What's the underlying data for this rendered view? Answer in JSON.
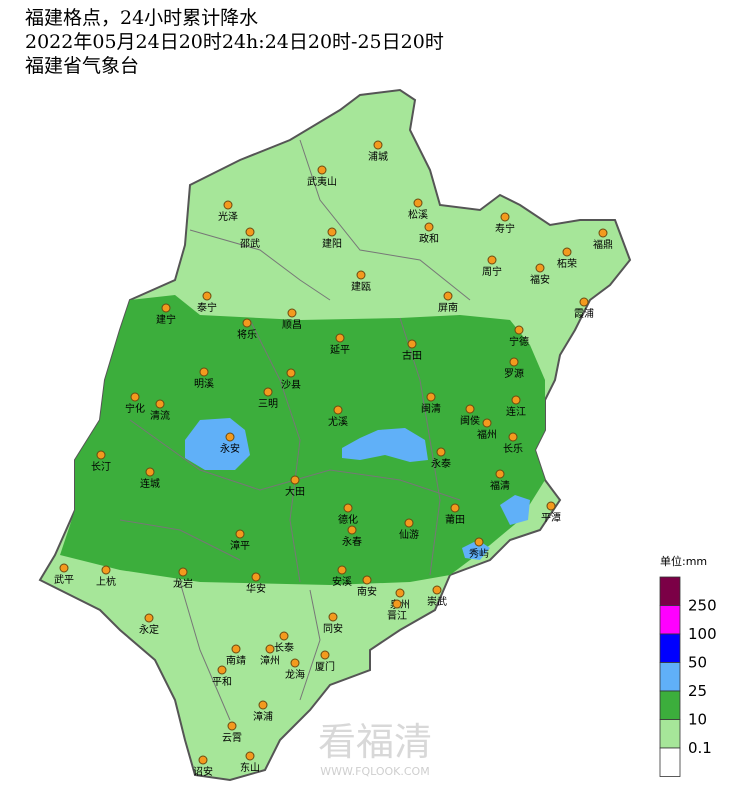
{
  "header": {
    "title_lines": [
      "福建格点，24小时累计降水",
      "2022年05月24日20时24h:24日20时-25日20时",
      "福建省气象台"
    ]
  },
  "cities": [
    "浦城",
    "武夷山",
    "光泽",
    "松溪",
    "政和",
    "寿宁",
    "邵武",
    "建阳",
    "福鼎",
    "柘荣",
    "周宁",
    "福安",
    "建瓯",
    "泰宁",
    "屏南",
    "霞浦",
    "建宁",
    "顺昌",
    "将乐",
    "宁德",
    "古田",
    "延平",
    "罗源",
    "明溪",
    "沙县",
    "三明",
    "宁化",
    "清流",
    "闽清",
    "闽侯",
    "连江",
    "尤溪",
    "福州",
    "永安",
    "长乐",
    "长汀",
    "永泰",
    "连城",
    "大田",
    "福清",
    "平潭",
    "德化",
    "莆田",
    "仙游",
    "漳平",
    "永春",
    "秀屿",
    "武平",
    "上杭",
    "龙岩",
    "安溪",
    "华安",
    "南安",
    "泉州",
    "崇武",
    "晋江",
    "永定",
    "同安",
    "长泰",
    "南靖",
    "漳州",
    "厦门",
    "龙海",
    "平和",
    "漳浦",
    "云霄",
    "诏安",
    "东山"
  ],
  "legend": {
    "unit": "单位:mm",
    "levels": [
      {
        "value": 250,
        "color": "#7b0046"
      },
      {
        "value": 100,
        "color": "#ff00ff"
      },
      {
        "value": 50,
        "color": "#0000fe"
      },
      {
        "value": 25,
        "color": "#60b0f8"
      },
      {
        "value": 10,
        "color": "#3cae3c"
      },
      {
        "value": 0.1,
        "color": "#a6e699"
      }
    ],
    "below_color": "#ffffff"
  },
  "watermark": {
    "name": "看福清",
    "url": "WWW.FQLOOK.COM"
  }
}
